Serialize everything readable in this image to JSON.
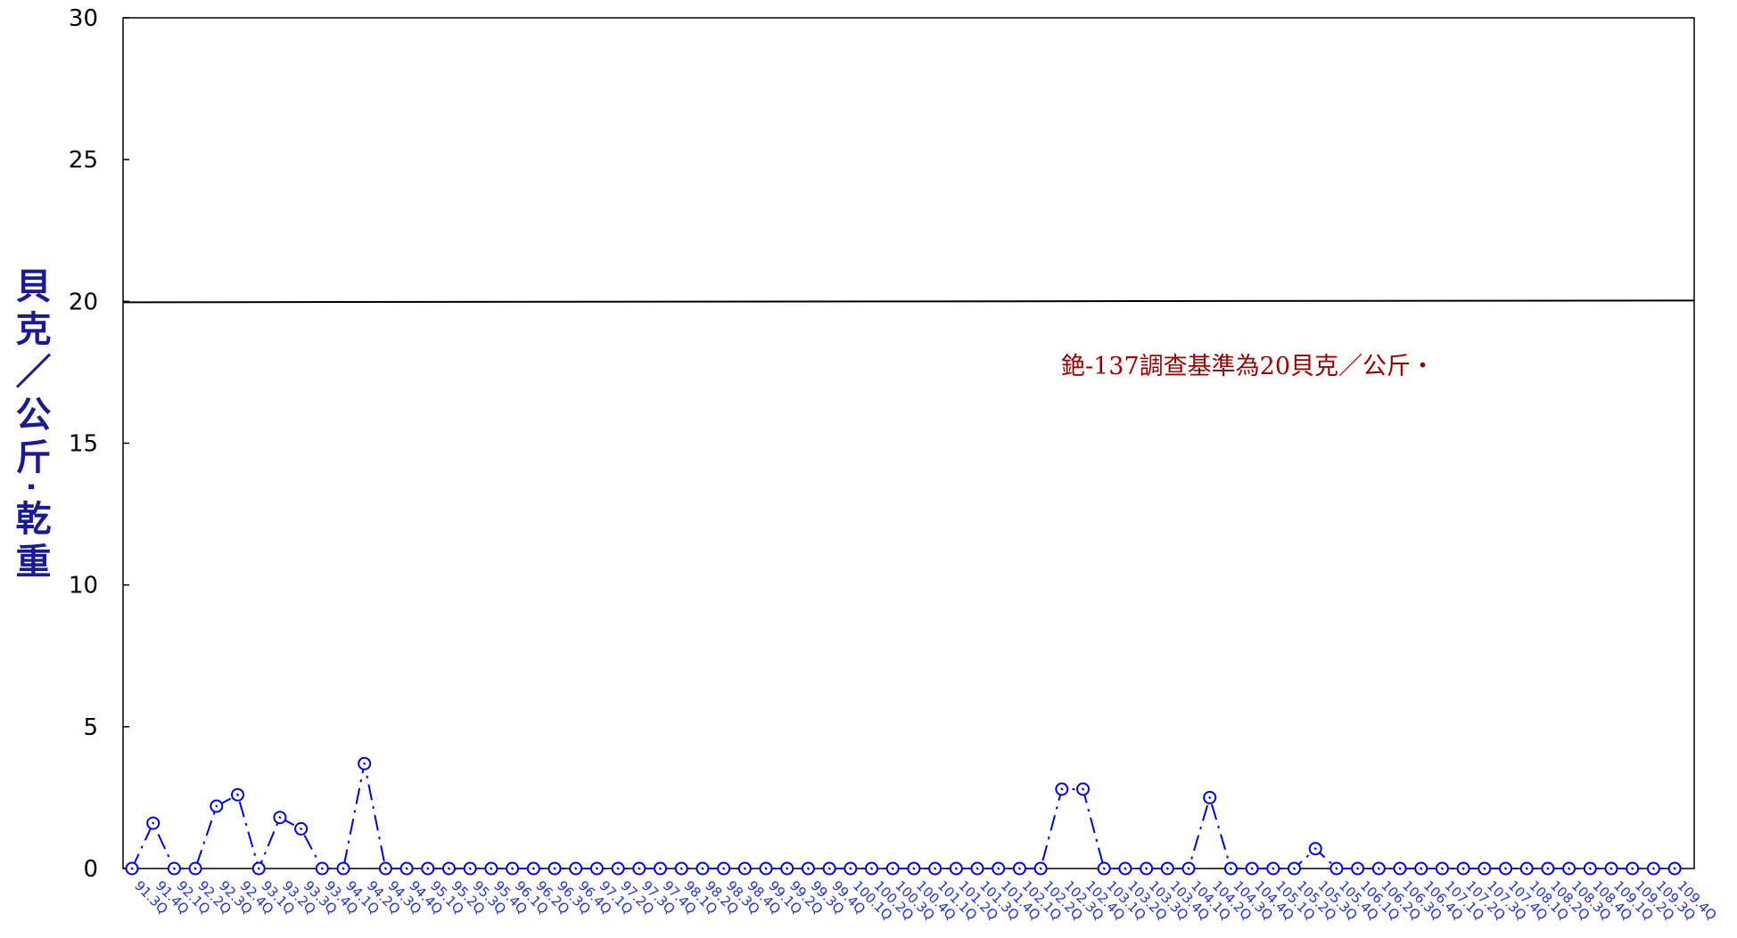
{
  "chart_data": {
    "type": "line",
    "title": "",
    "xlabel": "",
    "ylabel": "貝克／公斤‧乾重",
    "ylim": [
      0,
      30
    ],
    "yticks": [
      0,
      5,
      10,
      15,
      20,
      25,
      30
    ],
    "grid": false,
    "legend": "none",
    "colors": {
      "series": "#0000ee",
      "reference": "#000000",
      "annotation": "#990000",
      "ylabel": "#1a1a99",
      "xtick": "#2233dd"
    },
    "categories": [
      "91.3Q",
      "91.4Q",
      "92.1Q",
      "92.2Q",
      "92.3Q",
      "92.4Q",
      "93.1Q",
      "93.2Q",
      "93.3Q",
      "93.4Q",
      "94.1Q",
      "94.2Q",
      "94.3Q",
      "94.4Q",
      "95.1Q",
      "95.2Q",
      "95.3Q",
      "95.4Q",
      "96.1Q",
      "96.2Q",
      "96.3Q",
      "96.4Q",
      "97.1Q",
      "97.2Q",
      "97.3Q",
      "97.4Q",
      "98.1Q",
      "98.2Q",
      "98.3Q",
      "98.4Q",
      "99.1Q",
      "99.2Q",
      "99.3Q",
      "99.4Q",
      "100.1Q",
      "100.2Q",
      "100.3Q",
      "100.4Q",
      "101.1Q",
      "101.2Q",
      "101.3Q",
      "101.4Q",
      "102.1Q",
      "102.2Q",
      "102.3Q",
      "102.4Q",
      "103.1Q",
      "103.2Q",
      "103.3Q",
      "103.4Q",
      "104.1Q",
      "104.2Q",
      "104.3Q",
      "104.4Q",
      "105.1Q",
      "105.2Q",
      "105.3Q",
      "105.4Q",
      "106.1Q",
      "106.2Q",
      "106.3Q",
      "106.4Q",
      "107.1Q",
      "107.2Q",
      "107.3Q",
      "107.4Q",
      "108.1Q",
      "108.2Q",
      "108.3Q",
      "108.4Q",
      "109.1Q",
      "109.2Q",
      "109.3Q",
      "109.4Q"
    ],
    "series": [
      {
        "values": [
          0,
          1.6,
          0,
          0,
          2.2,
          2.6,
          0,
          1.8,
          1.4,
          0,
          0,
          3.7,
          0,
          0,
          0,
          0,
          0,
          0,
          0,
          0,
          0,
          0,
          0,
          0,
          0,
          0,
          0,
          0,
          0,
          0,
          0,
          0,
          0,
          0,
          0,
          0,
          0,
          0,
          0,
          0,
          0,
          0,
          0,
          0,
          2.8,
          2.8,
          0,
          0,
          0,
          0,
          0,
          2.5,
          0,
          0,
          0,
          0,
          0.7,
          0,
          0,
          0,
          0,
          0,
          0,
          0,
          0,
          0,
          0,
          0,
          0,
          0,
          0,
          0,
          0,
          0
        ]
      }
    ],
    "reference_line": {
      "value": 20
    },
    "annotation": "銫-137調查基準為20貝克／公斤‧"
  }
}
